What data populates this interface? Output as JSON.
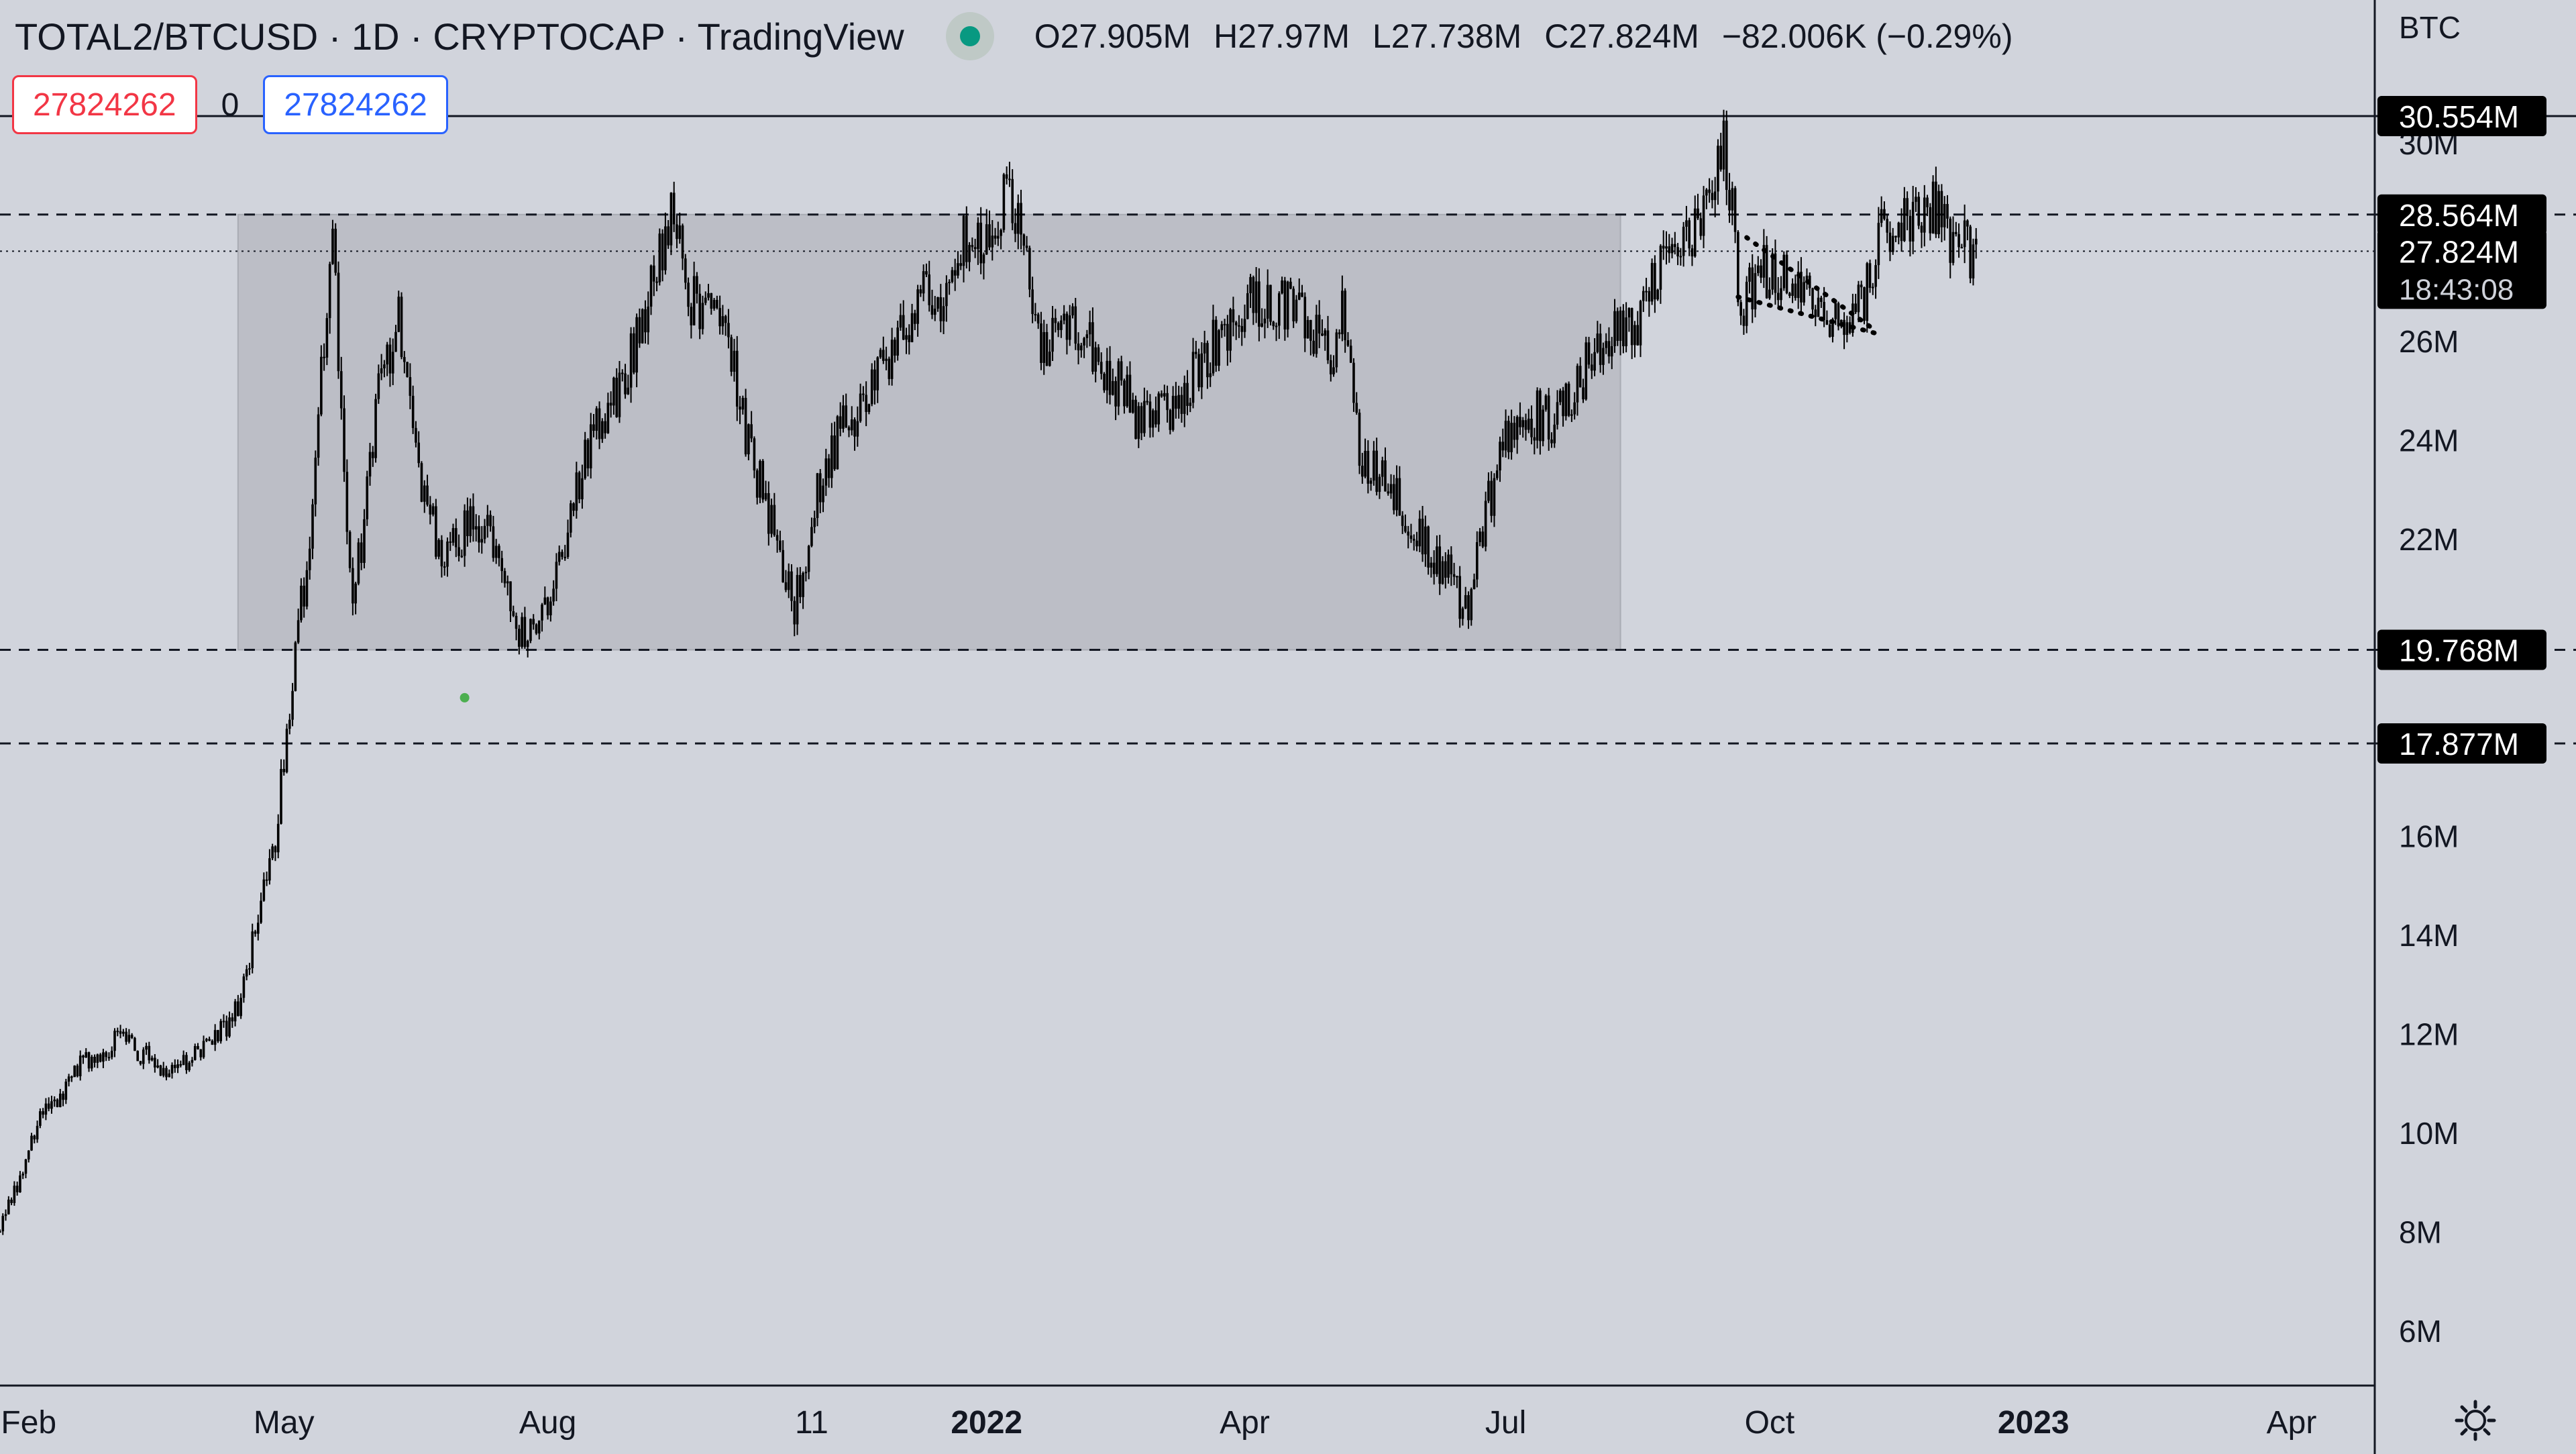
{
  "header": {
    "title": "TOTAL2/BTCUSD · 1D · CRYPTOCAP · TradingView",
    "open": "O27.905M",
    "high": "H27.97M",
    "low": "L27.738M",
    "close": "C27.824M",
    "change": "−82.006K (−0.29%)",
    "status_color": "#089981"
  },
  "toolbar": {
    "sell_value": "27824262",
    "spread": "0",
    "buy_value": "27824262"
  },
  "axis": {
    "unit": "BTC",
    "settings_icon": "gear-icon"
  },
  "chart_data": {
    "type": "candlestick",
    "title": "TOTAL2/BTCUSD · 1D · CRYPTOCAP · TradingView",
    "y_unit": "BTC",
    "ylim": [
      4900000,
      32900000
    ],
    "xlim": [
      "2021-01-22",
      "2023-04-30"
    ],
    "y_tick_labels": [
      "6M",
      "8M",
      "10M",
      "12M",
      "14M",
      "16M",
      "22M",
      "24M",
      "26M",
      "30M"
    ],
    "x_tick_labels": [
      "Feb",
      "May",
      "Aug",
      "11",
      "2022",
      "Apr",
      "Jul",
      "Oct",
      "2023",
      "Apr"
    ],
    "price_levels": [
      {
        "label": "30.554M",
        "value": 30554000,
        "style": "solid"
      },
      {
        "label": "28.564M",
        "value": 28564000,
        "style": "dashed"
      },
      {
        "label": "19.768M",
        "value": 19768000,
        "style": "dashed"
      },
      {
        "label": "17.877M",
        "value": 17877000,
        "style": "dashed"
      }
    ],
    "current_price": {
      "label": "27.824M",
      "value": 27824000,
      "countdown": "18:43:08"
    },
    "range_box": {
      "from": "2021-04-15",
      "to": "2022-08-10",
      "low": 19768000,
      "high": 28564000,
      "color": "#bcbec6"
    },
    "price_path": [
      [
        "2021-01-22",
        8000000
      ],
      [
        "2021-02-05",
        10300000
      ],
      [
        "2021-02-20",
        11400000
      ],
      [
        "2021-03-05",
        11900000
      ],
      [
        "2021-03-20",
        11300000
      ],
      [
        "2021-04-05",
        11700000
      ],
      [
        "2021-04-15",
        12500000
      ],
      [
        "2021-04-28",
        16000000
      ],
      [
        "2021-05-05",
        19700000
      ],
      [
        "2021-05-11",
        22500000
      ],
      [
        "2021-05-16",
        27000000
      ],
      [
        "2021-05-18",
        28400000
      ],
      [
        "2021-05-21",
        24500000
      ],
      [
        "2021-05-25",
        20500000
      ],
      [
        "2021-06-03",
        25000000
      ],
      [
        "2021-06-10",
        26600000
      ],
      [
        "2021-06-18",
        22800000
      ],
      [
        "2021-06-27",
        21500000
      ],
      [
        "2021-07-05",
        22500000
      ],
      [
        "2021-07-15",
        21800000
      ],
      [
        "2021-07-23",
        20000000
      ],
      [
        "2021-08-03",
        21000000
      ],
      [
        "2021-08-15",
        23800000
      ],
      [
        "2021-08-28",
        25200000
      ],
      [
        "2021-09-08",
        27500000
      ],
      [
        "2021-09-13",
        28500000
      ],
      [
        "2021-09-20",
        26800000
      ],
      [
        "2021-10-01",
        26600000
      ],
      [
        "2021-10-10",
        23900000
      ],
      [
        "2021-10-20",
        21900000
      ],
      [
        "2021-10-26",
        20700000
      ],
      [
        "2021-11-05",
        23500000
      ],
      [
        "2021-11-20",
        25000000
      ],
      [
        "2021-12-01",
        25800000
      ],
      [
        "2021-12-10",
        27500000
      ],
      [
        "2021-12-15",
        26700000
      ],
      [
        "2021-12-22",
        28000000
      ],
      [
        "2022-01-03",
        28200000
      ],
      [
        "2022-01-08",
        29000000
      ],
      [
        "2022-01-13",
        28200000
      ],
      [
        "2022-01-20",
        26000000
      ],
      [
        "2022-02-01",
        26200000
      ],
      [
        "2022-02-15",
        25200000
      ],
      [
        "2022-02-25",
        24300000
      ],
      [
        "2022-03-10",
        24900000
      ],
      [
        "2022-03-25",
        26300000
      ],
      [
        "2022-04-05",
        26900000
      ],
      [
        "2022-04-20",
        26600000
      ],
      [
        "2022-05-01",
        25500000
      ],
      [
        "2022-05-05",
        26600000
      ],
      [
        "2022-05-11",
        23800000
      ],
      [
        "2022-05-20",
        23300000
      ],
      [
        "2022-06-01",
        22000000
      ],
      [
        "2022-06-14",
        21000000
      ],
      [
        "2022-06-18",
        20300000
      ],
      [
        "2022-06-23",
        22300000
      ],
      [
        "2022-07-05",
        24700000
      ],
      [
        "2022-07-18",
        24300000
      ],
      [
        "2022-08-01",
        25800000
      ],
      [
        "2022-08-15",
        26300000
      ],
      [
        "2022-08-25",
        27700000
      ],
      [
        "2022-09-03",
        28000000
      ],
      [
        "2022-09-10",
        28800000
      ],
      [
        "2022-09-15",
        30200000
      ],
      [
        "2022-09-21",
        26800000
      ],
      [
        "2022-10-01",
        27500000
      ],
      [
        "2022-10-15",
        26800000
      ],
      [
        "2022-10-25",
        26500000
      ],
      [
        "2022-11-03",
        26700000
      ],
      [
        "2022-11-08",
        28200000
      ],
      [
        "2022-11-15",
        28400000
      ],
      [
        "2022-11-25",
        28900000
      ],
      [
        "2022-12-05",
        28000000
      ],
      [
        "2022-12-12",
        27824000
      ]
    ],
    "triangle": {
      "upper": [
        [
          "2022-09-23",
          28100000
        ],
        [
          "2022-11-05",
          26300000
        ]
      ],
      "lower": [
        [
          "2022-09-20",
          26900000
        ],
        [
          "2022-11-08",
          26150000
        ]
      ]
    },
    "marker": {
      "date": "2021-07-03",
      "value": 18800000,
      "color": "#4caf50"
    }
  }
}
